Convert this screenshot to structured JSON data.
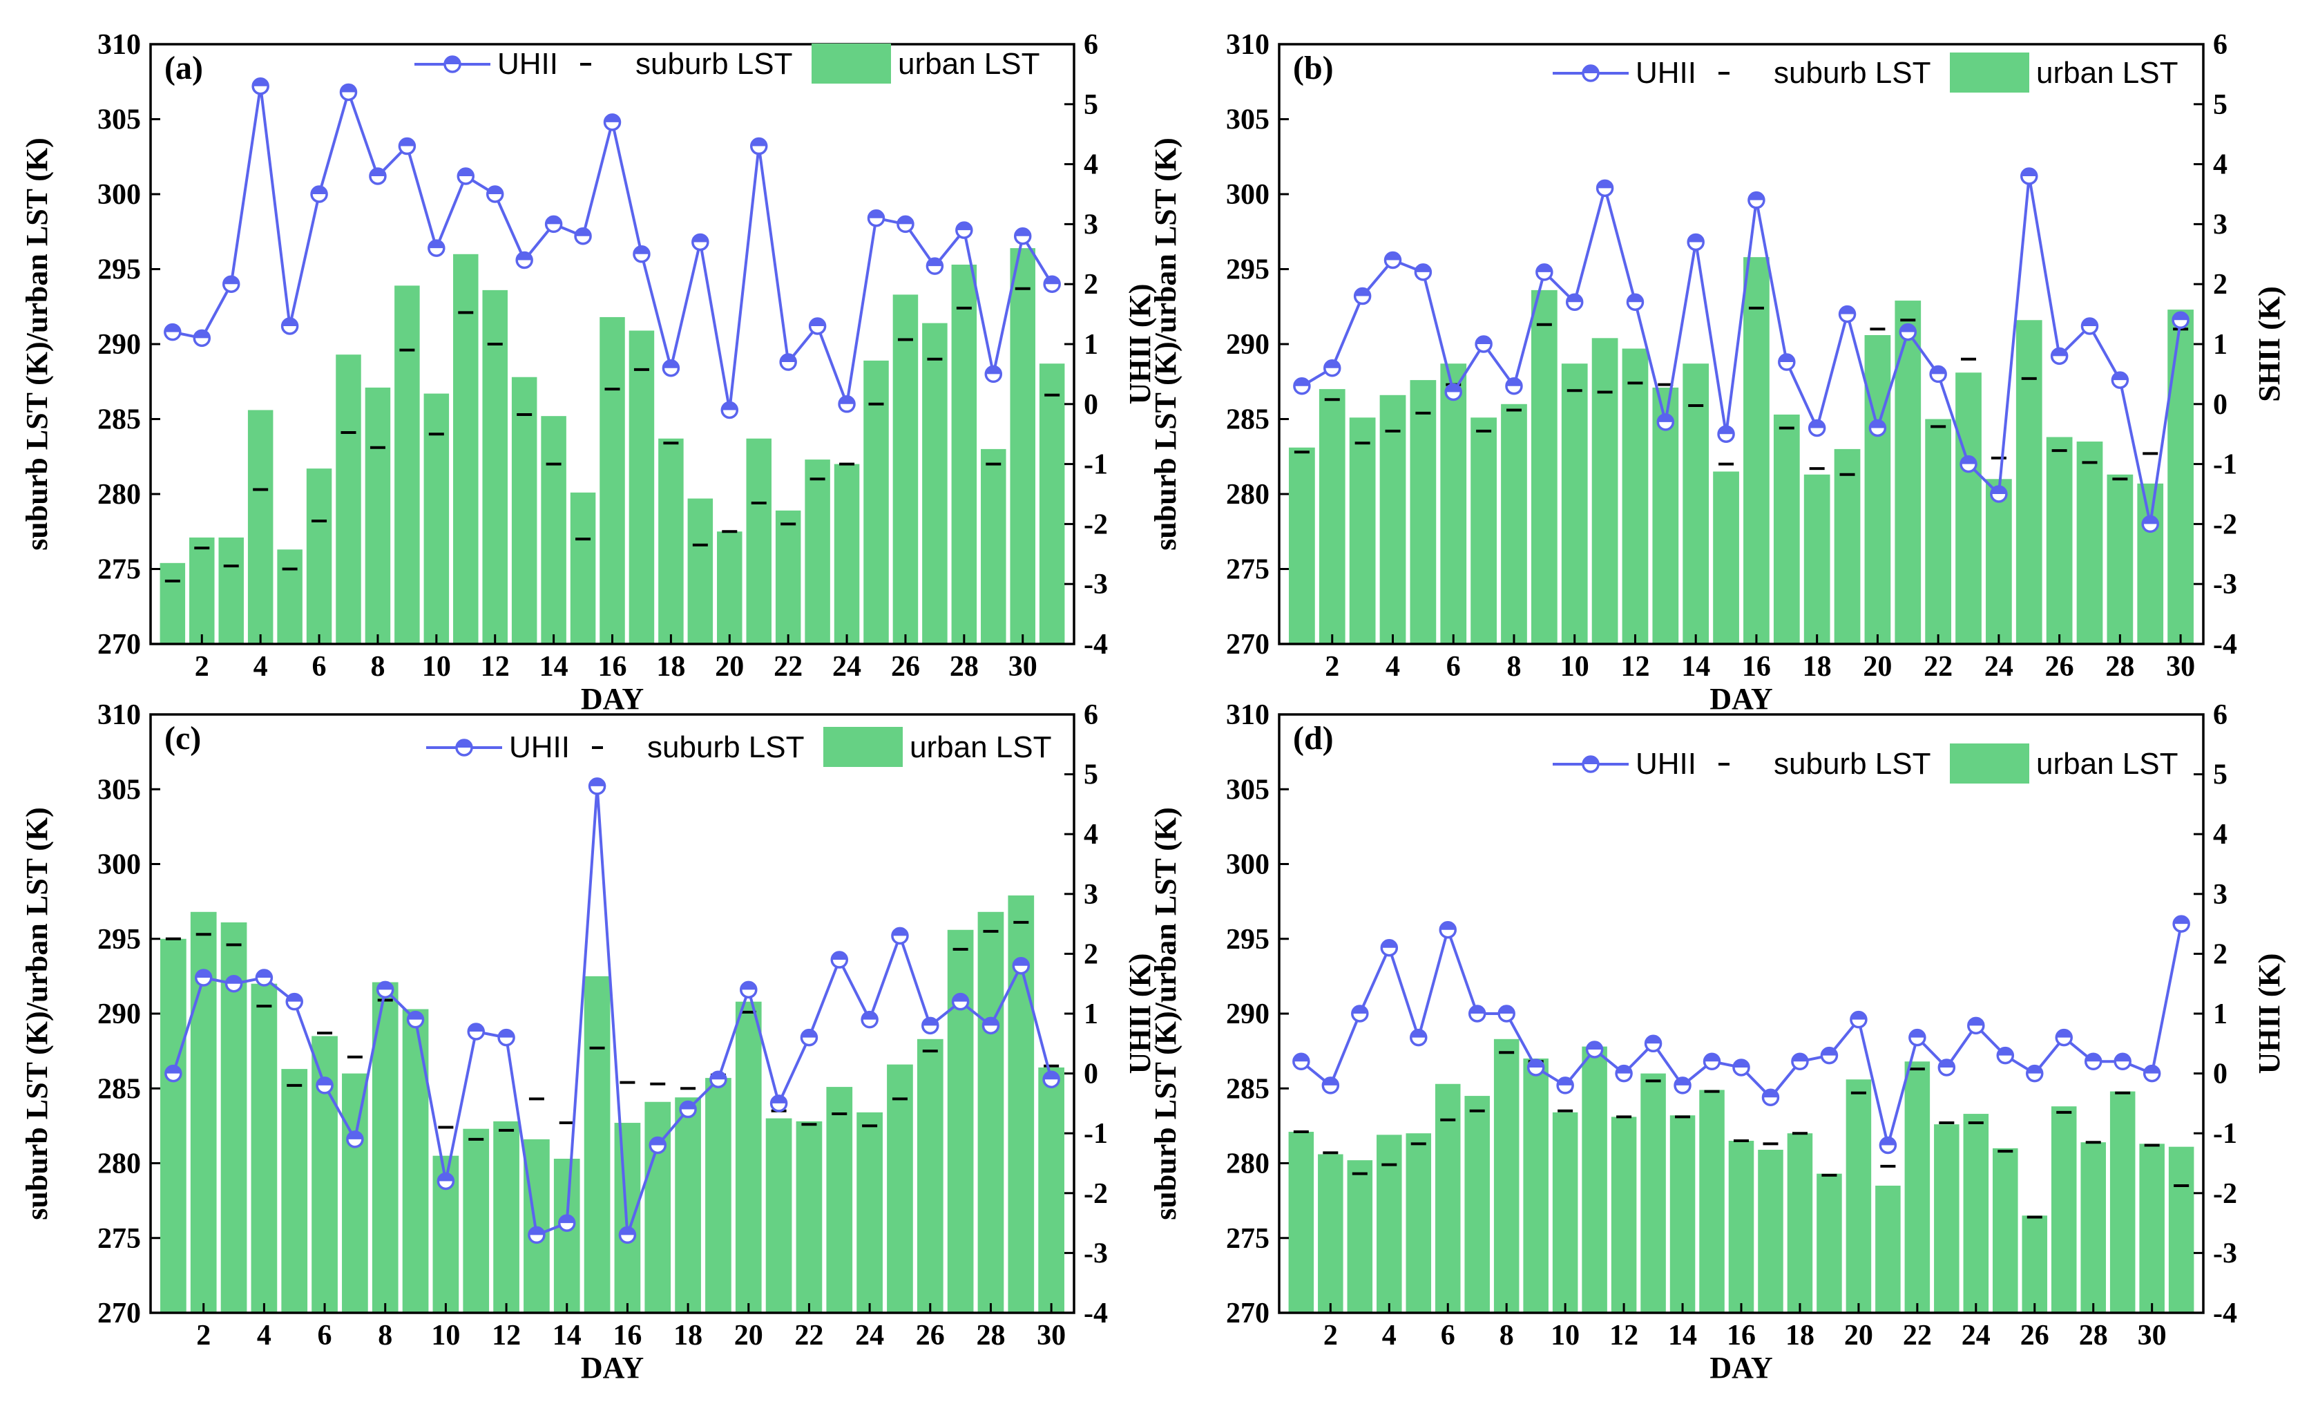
{
  "colors": {
    "bar": "#66d184",
    "line": "#5a64ee",
    "text": "#000000"
  },
  "chart_data": [
    {
      "panel": "(a)",
      "type": "bar+line",
      "xlabel": "DAY",
      "ylabel": "suburb LST (K)/urban LST (K)",
      "y2label": "UHII (K)",
      "ylim": [
        270,
        310
      ],
      "y2lim": [
        -4,
        6
      ],
      "yticks": [
        "270",
        "275",
        "280",
        "285",
        "290",
        "295",
        "300",
        "305",
        "310"
      ],
      "y2ticks": [
        "-4",
        "-3",
        "-2",
        "-1",
        "0",
        "1",
        "2",
        "3",
        "4",
        "5",
        "6"
      ],
      "xticks": [
        "2",
        "4",
        "6",
        "8",
        "10",
        "12",
        "14",
        "16",
        "18",
        "20",
        "22",
        "24",
        "26",
        "28",
        "30"
      ],
      "legend": {
        "line": "UHII",
        "dash": "suburb LST",
        "bar": "urban LST"
      },
      "days": [
        1,
        2,
        3,
        4,
        5,
        6,
        7,
        8,
        9,
        10,
        11,
        12,
        13,
        14,
        15,
        16,
        17,
        18,
        19,
        20,
        21,
        22,
        23,
        24,
        25,
        26,
        27,
        28,
        29,
        30,
        31
      ],
      "urban_lst": [
        275.4,
        277.1,
        277.1,
        285.6,
        276.3,
        281.7,
        289.3,
        287.1,
        293.9,
        286.7,
        296.0,
        293.6,
        287.8,
        285.2,
        280.1,
        291.8,
        290.9,
        283.7,
        279.7,
        277.5,
        283.7,
        278.9,
        282.3,
        282.0,
        288.9,
        293.3,
        291.4,
        295.3,
        283.0,
        296.4,
        288.7
      ],
      "suburb_lst": [
        274.2,
        276.4,
        275.2,
        280.3,
        275.0,
        278.2,
        284.1,
        283.1,
        289.6,
        284.0,
        292.1,
        290.0,
        285.3,
        282.0,
        277.0,
        287.0,
        288.3,
        283.4,
        276.6,
        277.5,
        279.4,
        278.0,
        281.0,
        282.0,
        286.0,
        290.3,
        289.0,
        292.4,
        282.0,
        293.7,
        286.6
      ],
      "uhii": [
        1.2,
        1.1,
        2.0,
        5.3,
        1.3,
        3.5,
        5.2,
        3.8,
        4.3,
        2.6,
        3.8,
        3.5,
        2.4,
        3.0,
        2.8,
        4.7,
        2.5,
        0.6,
        2.7,
        -0.1,
        4.3,
        0.7,
        1.3,
        0.0,
        3.1,
        3.0,
        2.3,
        2.9,
        0.5,
        2.8,
        2.0
      ]
    },
    {
      "panel": "(b)",
      "type": "bar+line",
      "xlabel": "DAY",
      "ylabel": "suburb LST (K)/urban LST (K)",
      "y2label": "SHII (K)",
      "ylim": [
        270,
        310
      ],
      "y2lim": [
        -4,
        6
      ],
      "yticks": [
        "270",
        "275",
        "280",
        "285",
        "290",
        "295",
        "300",
        "305",
        "310"
      ],
      "y2ticks": [
        "-4",
        "-3",
        "-2",
        "-1",
        "0",
        "1",
        "2",
        "3",
        "4",
        "5",
        "6"
      ],
      "xticks": [
        "2",
        "4",
        "6",
        "8",
        "10",
        "12",
        "14",
        "16",
        "18",
        "20",
        "22",
        "24",
        "26",
        "28",
        "30"
      ],
      "legend": {
        "line": "UHII",
        "dash": "suburb LST",
        "bar": "urban LST"
      },
      "days": [
        1,
        2,
        3,
        4,
        5,
        6,
        7,
        8,
        9,
        10,
        11,
        12,
        13,
        14,
        15,
        16,
        17,
        18,
        19,
        20,
        21,
        22,
        23,
        24,
        25,
        26,
        27,
        28,
        29,
        30
      ],
      "urban_lst": [
        283.1,
        287.0,
        285.1,
        286.6,
        287.6,
        288.7,
        285.1,
        286.0,
        293.6,
        288.7,
        290.4,
        289.7,
        287.1,
        288.7,
        281.5,
        295.8,
        285.3,
        281.3,
        283.0,
        290.6,
        292.9,
        285.0,
        288.1,
        281.0,
        291.6,
        283.8,
        283.5,
        281.3,
        280.7,
        292.3
      ],
      "suburb_lst": [
        282.8,
        286.3,
        283.4,
        284.2,
        285.4,
        287.3,
        284.2,
        285.6,
        291.3,
        286.9,
        286.8,
        287.4,
        287.3,
        285.9,
        282.0,
        292.4,
        284.4,
        281.7,
        281.3,
        291.0,
        291.6,
        284.5,
        289.0,
        282.4,
        287.7,
        282.9,
        282.1,
        281.0,
        282.7,
        291.0
      ],
      "uhii": [
        0.3,
        0.6,
        1.8,
        2.4,
        2.2,
        0.2,
        1.0,
        0.3,
        2.2,
        1.7,
        3.6,
        1.7,
        -0.3,
        2.7,
        -0.5,
        3.4,
        0.7,
        -0.4,
        1.5,
        -0.4,
        1.2,
        0.5,
        -1.0,
        -1.5,
        3.8,
        0.8,
        1.3,
        0.4,
        -2.0,
        1.4
      ]
    },
    {
      "panel": "(c)",
      "type": "bar+line",
      "xlabel": "DAY",
      "ylabel": "suburb LST (K)/urban LST (K)",
      "y2label": "UHII (K)",
      "ylim": [
        270,
        310
      ],
      "y2lim": [
        -4,
        6
      ],
      "yticks": [
        "270",
        "275",
        "280",
        "285",
        "290",
        "295",
        "300",
        "305",
        "310"
      ],
      "y2ticks": [
        "-4",
        "-3",
        "-2",
        "-1",
        "0",
        "1",
        "2",
        "3",
        "4",
        "5",
        "6"
      ],
      "xticks": [
        "2",
        "4",
        "6",
        "8",
        "10",
        "12",
        "14",
        "16",
        "18",
        "20",
        "22",
        "24",
        "26",
        "28",
        "30"
      ],
      "legend": {
        "line": "UHII",
        "dash": "suburb LST",
        "bar": "urban LST"
      },
      "days": [
        1,
        2,
        3,
        4,
        5,
        6,
        7,
        8,
        9,
        10,
        11,
        12,
        13,
        14,
        15,
        16,
        17,
        18,
        19,
        20,
        21,
        22,
        23,
        24,
        25,
        26,
        27,
        28,
        29,
        30
      ],
      "urban_lst": [
        295.0,
        296.8,
        296.1,
        292.0,
        286.3,
        288.5,
        286.0,
        292.1,
        290.3,
        280.5,
        282.3,
        282.8,
        281.6,
        280.3,
        292.5,
        282.7,
        284.1,
        284.4,
        285.7,
        290.8,
        283.0,
        282.8,
        285.1,
        283.4,
        286.6,
        288.3,
        295.6,
        296.8,
        297.9,
        286.4
      ],
      "suburb_lst": [
        295.0,
        295.3,
        294.6,
        290.5,
        285.2,
        288.7,
        287.1,
        290.9,
        289.7,
        282.4,
        281.6,
        282.2,
        284.3,
        282.7,
        287.7,
        285.4,
        285.3,
        285.0,
        285.9,
        290.1,
        283.5,
        282.6,
        283.3,
        282.5,
        284.3,
        287.5,
        294.3,
        295.5,
        296.1,
        286.5
      ],
      "uhii": [
        0.0,
        1.6,
        1.5,
        1.6,
        1.2,
        -0.2,
        -1.1,
        1.4,
        0.9,
        -1.8,
        0.7,
        0.6,
        -2.7,
        -2.5,
        4.8,
        -2.7,
        -1.2,
        -0.6,
        -0.1,
        1.4,
        -0.5,
        0.6,
        1.9,
        0.9,
        2.3,
        0.8,
        1.2,
        0.8,
        1.8,
        -0.1
      ]
    },
    {
      "panel": "(d)",
      "type": "bar+line",
      "xlabel": "DAY",
      "ylabel": "suburb LST (K)/urban LST (K)",
      "y2label": "UHII (K)",
      "ylim": [
        270,
        310
      ],
      "y2lim": [
        -4,
        6
      ],
      "yticks": [
        "270",
        "275",
        "280",
        "285",
        "290",
        "295",
        "300",
        "305",
        "310"
      ],
      "y2ticks": [
        "-4",
        "-3",
        "-2",
        "-1",
        "0",
        "1",
        "2",
        "3",
        "4",
        "5",
        "6"
      ],
      "xticks": [
        "2",
        "4",
        "6",
        "8",
        "10",
        "12",
        "14",
        "16",
        "18",
        "20",
        "22",
        "24",
        "26",
        "28",
        "30"
      ],
      "legend": {
        "line": "UHII",
        "dash": "suburb LST",
        "bar": "urban LST"
      },
      "days": [
        1,
        2,
        3,
        4,
        5,
        6,
        7,
        8,
        9,
        10,
        11,
        12,
        13,
        14,
        15,
        16,
        17,
        18,
        19,
        20,
        21,
        22,
        23,
        24,
        25,
        26,
        27,
        28,
        29,
        30,
        31
      ],
      "urban_lst": [
        282.1,
        280.6,
        280.2,
        281.9,
        282.0,
        285.3,
        284.5,
        288.3,
        287.0,
        283.4,
        287.8,
        283.1,
        286.0,
        283.2,
        284.9,
        281.5,
        280.9,
        282.0,
        279.3,
        285.6,
        278.5,
        286.8,
        282.6,
        283.3,
        281.0,
        276.5,
        283.8,
        281.4,
        284.8,
        281.3,
        281.1
      ],
      "suburb_lst": [
        282.1,
        280.7,
        279.3,
        279.9,
        281.3,
        282.9,
        283.5,
        287.4,
        286.8,
        283.5,
        287.4,
        283.1,
        285.5,
        283.1,
        284.8,
        281.5,
        281.3,
        282.0,
        279.2,
        284.7,
        279.8,
        286.3,
        282.7,
        282.7,
        280.8,
        276.4,
        283.4,
        281.4,
        284.7,
        281.2,
        278.5
      ],
      "uhii": [
        0.2,
        -0.2,
        1.0,
        2.1,
        0.6,
        2.4,
        1.0,
        1.0,
        0.1,
        -0.2,
        0.4,
        0.0,
        0.5,
        -0.2,
        0.2,
        0.1,
        -0.4,
        0.2,
        0.3,
        0.9,
        -1.2,
        0.6,
        0.1,
        0.8,
        0.3,
        0.0,
        0.6,
        0.2,
        0.2,
        0.0,
        2.5
      ]
    }
  ]
}
